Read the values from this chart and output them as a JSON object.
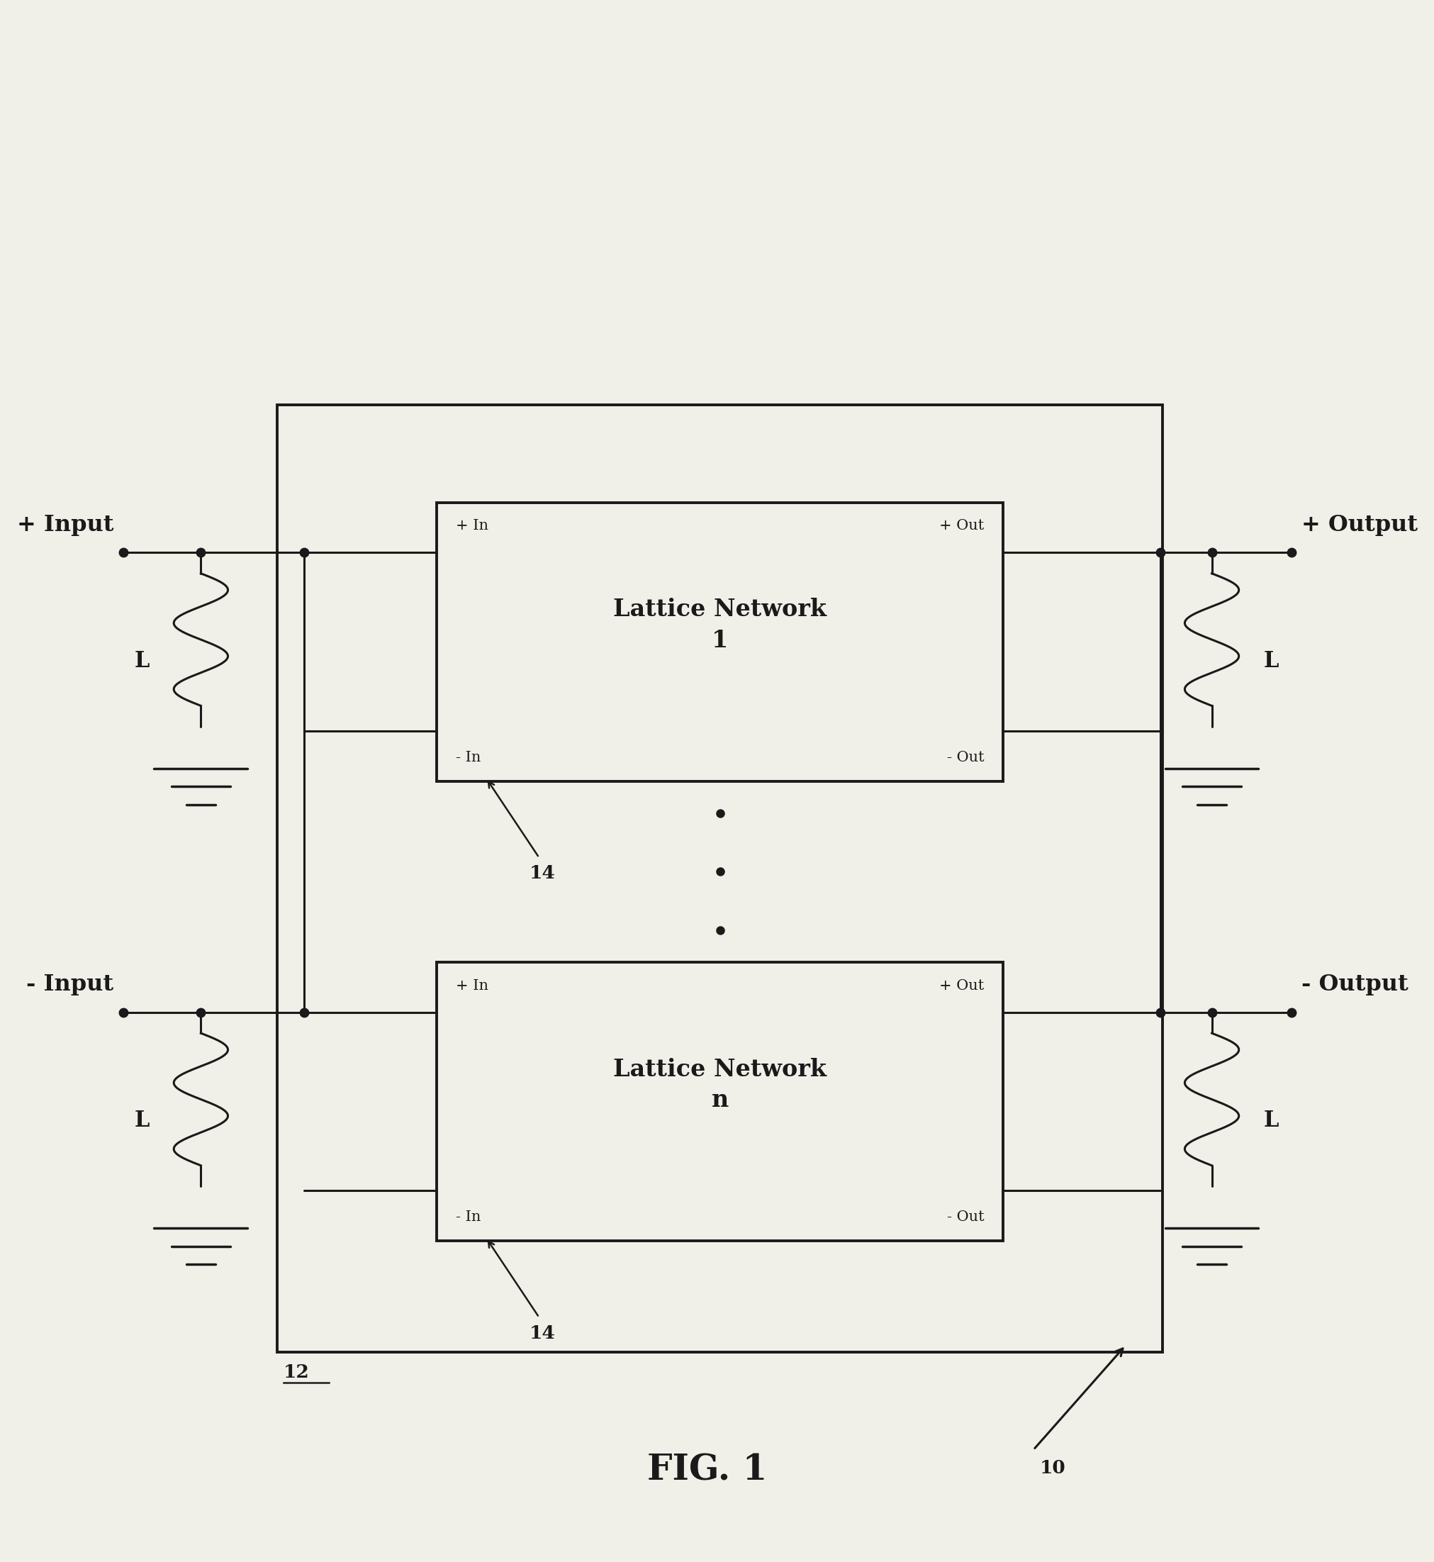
{
  "bg_color": "#f0efe8",
  "line_color": "#1a1a1a",
  "fig_width": 20.24,
  "fig_height": 22.03,
  "title": "FIG. 1",
  "ln1_text": "Lattice Network\n1",
  "lnn_text": "Lattice Network\nn",
  "label_12": "12",
  "label_14a": "14",
  "label_14b": "14",
  "label_10": "10",
  "plus_input": "+ Input",
  "minus_input": "- Input",
  "plus_output": "+ Output",
  "minus_output": "- Output",
  "plus_in": "+ In",
  "minus_in": "- In",
  "plus_out": "+ Out",
  "minus_out": "- Out",
  "label_L": "L"
}
